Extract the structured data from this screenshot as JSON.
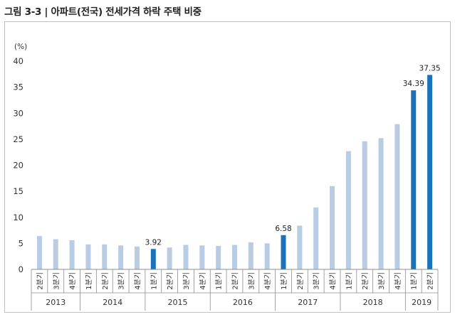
{
  "page": {
    "title": "그림 3-3 | 아파트(전국) 전세가격 하락 주택 비중"
  },
  "colors": {
    "light_bar": "#b8cce4",
    "highlight_bar": "#1a73b8",
    "axis": "#8c8c8c"
  },
  "chart_data": {
    "type": "bar",
    "title": "아파트(전국) 전세가격 하락 주택 비중",
    "ylabel": "(%)",
    "ylim": [
      0,
      40
    ],
    "yticks": [
      0,
      5,
      10,
      15,
      20,
      25,
      30,
      35,
      40
    ],
    "categories": [
      "2분기",
      "3분기",
      "4분기",
      "1분기",
      "2분기",
      "3분기",
      "4분기",
      "1분기",
      "2분기",
      "3분기",
      "4분기",
      "1분기",
      "2분기",
      "3분기",
      "4분기",
      "1분기",
      "2분기",
      "3분기",
      "4분기",
      "1분기",
      "2분기",
      "3분기",
      "4분기",
      "1분기",
      "2분기"
    ],
    "values": [
      6.4,
      5.8,
      5.6,
      4.8,
      4.8,
      4.6,
      4.4,
      3.92,
      4.2,
      4.7,
      4.6,
      4.5,
      4.7,
      5.2,
      5.0,
      6.58,
      8.4,
      11.9,
      16.0,
      22.7,
      24.6,
      25.2,
      27.9,
      34.39,
      37.35
    ],
    "highlighted": [
      7,
      15,
      23,
      24
    ],
    "data_labels": [
      {
        "index": 7,
        "text": "3.92"
      },
      {
        "index": 15,
        "text": "6.58"
      },
      {
        "index": 23,
        "text": "34.39"
      },
      {
        "index": 24,
        "text": "37.35"
      }
    ],
    "years": [
      {
        "label": "2013",
        "start": 0,
        "end": 2
      },
      {
        "label": "2014",
        "start": 3,
        "end": 6
      },
      {
        "label": "2015",
        "start": 7,
        "end": 10
      },
      {
        "label": "2016",
        "start": 11,
        "end": 14
      },
      {
        "label": "2017",
        "start": 15,
        "end": 18
      },
      {
        "label": "2018",
        "start": 19,
        "end": 22
      },
      {
        "label": "2019",
        "start": 23,
        "end": 24
      }
    ]
  }
}
